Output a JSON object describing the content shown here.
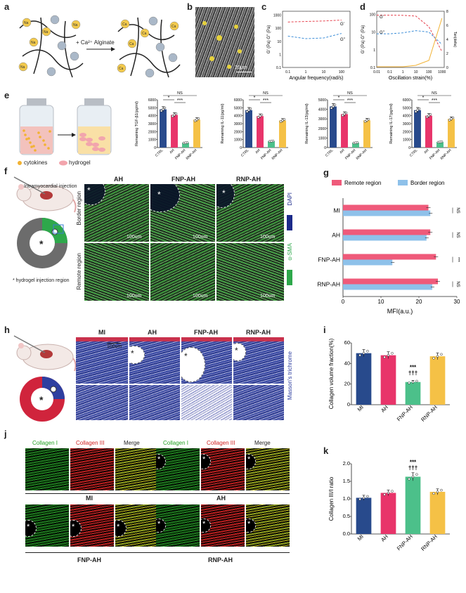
{
  "panel_labels": [
    "a",
    "b",
    "c",
    "d",
    "e",
    "f",
    "g",
    "h",
    "i",
    "j",
    "k"
  ],
  "a": {
    "reaction": "+ Ca²⁺ Alginate",
    "ion": "Na",
    "ion2": "Ca"
  },
  "b": {
    "scale": "20μm"
  },
  "c": {
    "xlabel": "Angular frequency(rad/s)",
    "ylabel": "G' (Pa) G'' (Pa)",
    "legend_gp": "G'",
    "legend_gpp": "G''",
    "yticks": [
      "1000",
      "100",
      "10",
      "1",
      "0.1"
    ],
    "xticks": [
      "0.1",
      "1",
      "10",
      "100"
    ]
  },
  "d": {
    "xlabel": "Oscillation strain(%)",
    "ylabel": "G' (Pa) G'' (Pa)",
    "ylabel2": "Tan(delta)",
    "legend_gp": "G'",
    "legend_gpp": "G''",
    "yticks": [
      "100",
      "10",
      "1",
      "0.1"
    ],
    "xticks": [
      "0.01",
      "0.1",
      "1",
      "10",
      "100",
      "1000"
    ],
    "y2ticks": [
      "8",
      "6",
      "4",
      "2",
      "0"
    ]
  },
  "e": {
    "legend_cytokines": "cytokines",
    "legend_hydrogel": "hydrogel",
    "charts": [
      {
        "ylabel": "Remaining TGF-β1(pg/ml)",
        "yticks": [
          "0",
          "1000",
          "2000",
          "3000",
          "4000",
          "5000",
          "6000"
        ]
      },
      {
        "ylabel": "Remaining IL-11(pg/ml)",
        "yticks": [
          "0",
          "1000",
          "2000",
          "3000",
          "4000",
          "5000",
          "6000"
        ]
      },
      {
        "ylabel": "Remaining IL-13(pg/ml)",
        "yticks": [
          "0",
          "1000",
          "2000",
          "3000",
          "4000",
          "5000"
        ]
      },
      {
        "ylabel": "Remaining IL-17(pg/ml)",
        "yticks": [
          "0",
          "1000",
          "2000",
          "3000",
          "4000",
          "5000",
          "6000"
        ]
      }
    ],
    "categories": [
      "CTRL",
      "AH",
      "FNP-AH",
      "RNP-AH"
    ],
    "sig": [
      "*",
      "***",
      "NS"
    ]
  },
  "f": {
    "injection": "Intramyocardial injection",
    "hydrogel_region": "hydrogel injection region",
    "cols": [
      "AH",
      "FNP-AH",
      "RNP-AH"
    ],
    "rows": [
      "Border region",
      "Remote region"
    ],
    "dapi": "DAPI",
    "asma": "α-SMA",
    "scale": "100um",
    "star": "*"
  },
  "g": {
    "legend_remote": "Remote region",
    "legend_border": "Border region",
    "categories": [
      "MI",
      "AH",
      "FNP-AH",
      "RNP-AH"
    ],
    "xlabel": "MFI(a.u.)",
    "xticks": [
      "0",
      "10",
      "20",
      "30"
    ],
    "sig": [
      "NS",
      "NS",
      "***",
      "NS"
    ]
  },
  "h": {
    "cols": [
      "MI",
      "AH",
      "FNP-AH",
      "RNP-AH"
    ],
    "stain": "Masson's trichrome",
    "scale": "100um"
  },
  "i": {
    "ylabel": "Collagen volume fraction(%)",
    "yticks": [
      "0",
      "20",
      "40",
      "60"
    ],
    "categories": [
      "MI",
      "AH",
      "FNP-AH",
      "RNP-AH"
    ],
    "sig1": "***",
    "sig2": "†††"
  },
  "j": {
    "headers": [
      "Collagen I",
      "Collagen III",
      "Merge"
    ],
    "groups": [
      "MI",
      "AH",
      "FNP-AH",
      "RNP-AH"
    ]
  },
  "k": {
    "ylabel": "Collagen III/I ratio",
    "yticks": [
      "0.0",
      "0.5",
      "1.0",
      "1.5",
      "2.0"
    ],
    "categories": [
      "MI",
      "AH",
      "FNP-AH",
      "RNP-AH"
    ],
    "sig1": "***",
    "sig2": "†††"
  },
  "colors": {
    "navy": "#284a8c",
    "pink": "#e8346a",
    "green": "#4cc08a",
    "yellow": "#f5c146",
    "remote": "#ef5a7a",
    "border": "#8ec1ea"
  },
  "chart_data": [
    {
      "type": "line",
      "title": "",
      "xlabel": "Angular frequency(rad/s)",
      "ylabel": "G' (Pa) G'' (Pa)",
      "xscale": "log",
      "yscale": "log",
      "series": [
        {
          "name": "G'",
          "x": [
            0.1,
            1,
            10,
            100
          ],
          "y": [
            300,
            330,
            360,
            420
          ]
        },
        {
          "name": "G''",
          "x": [
            0.1,
            1,
            10,
            100
          ],
          "y": [
            25,
            16,
            18,
            40
          ]
        }
      ]
    },
    {
      "type": "line",
      "title": "",
      "xlabel": "Oscillation strain(%)",
      "ylabel": "G' (Pa) G'' (Pa)",
      "xscale": "log",
      "yscale": "log",
      "series": [
        {
          "name": "G'",
          "x": [
            0.01,
            0.1,
            1,
            10,
            100,
            1000
          ],
          "y": [
            90,
            90,
            88,
            80,
            20,
            0.8
          ]
        },
        {
          "name": "G''",
          "x": [
            0.01,
            0.1,
            1,
            10,
            100,
            1000
          ],
          "y": [
            8,
            8,
            9,
            12,
            10,
            2
          ]
        },
        {
          "name": "Tan(delta)",
          "x": [
            0.01,
            0.1,
            1,
            10,
            100,
            1000
          ],
          "y": [
            0.1,
            0.1,
            0.1,
            0.3,
            1,
            7
          ]
        }
      ]
    },
    {
      "type": "bar",
      "ylabel": "Remaining TGF-β1(pg/ml)",
      "categories": [
        "CTRL",
        "AH",
        "FNP-AH",
        "RNP-AH"
      ],
      "values": [
        4800,
        4100,
        600,
        3500
      ],
      "ylim": [
        0,
        6000
      ]
    },
    {
      "type": "bar",
      "ylabel": "Remaining IL-11(pg/ml)",
      "categories": [
        "CTRL",
        "AH",
        "FNP-AH",
        "RNP-AH"
      ],
      "values": [
        4700,
        3950,
        800,
        3400
      ],
      "ylim": [
        0,
        6000
      ]
    },
    {
      "type": "bar",
      "ylabel": "Remaining IL-13(pg/ml)",
      "categories": [
        "CTRL",
        "AH",
        "FNP-AH",
        "RNP-AH"
      ],
      "values": [
        4300,
        3500,
        500,
        2850
      ],
      "ylim": [
        0,
        5000
      ]
    },
    {
      "type": "bar",
      "ylabel": "Remaining IL-17(pg/ml)",
      "categories": [
        "CTRL",
        "AH",
        "FNP-AH",
        "RNP-AH"
      ],
      "values": [
        4700,
        4000,
        700,
        3600
      ],
      "ylim": [
        0,
        6000
      ]
    },
    {
      "type": "bar",
      "orientation": "horizontal",
      "xlabel": "MFI(a.u.)",
      "categories": [
        "MI",
        "AH",
        "FNP-AH",
        "RNP-AH"
      ],
      "xlim": [
        0,
        30
      ],
      "series": [
        {
          "name": "Remote region",
          "values": [
            22.5,
            23,
            24.5,
            25
          ]
        },
        {
          "name": "Border region",
          "values": [
            23,
            22,
            13,
            23.5
          ]
        }
      ]
    },
    {
      "type": "bar",
      "ylabel": "Collagen volume fraction(%)",
      "categories": [
        "MI",
        "AH",
        "FNP-AH",
        "RNP-AH"
      ],
      "values": [
        50,
        48,
        22,
        47
      ],
      "ylim": [
        0,
        60
      ]
    },
    {
      "type": "bar",
      "ylabel": "Collagen III/I ratio",
      "categories": [
        "MI",
        "AH",
        "FNP-AH",
        "RNP-AH"
      ],
      "values": [
        1.03,
        1.17,
        1.63,
        1.2
      ],
      "ylim": [
        0,
        2.0
      ]
    }
  ]
}
